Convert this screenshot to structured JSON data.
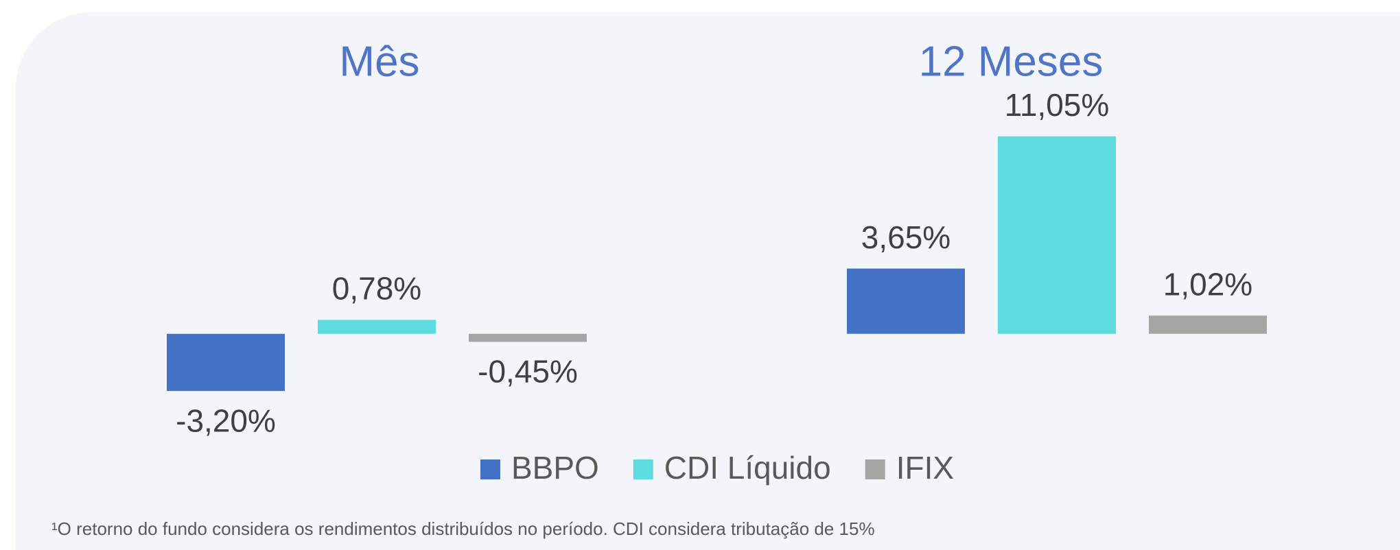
{
  "chart_data": {
    "type": "bar",
    "categories": [
      "Mês",
      "12 Meses"
    ],
    "series": [
      {
        "name": "BBPO",
        "color": "#4472c4",
        "values": [
          -3.2,
          3.65
        ],
        "value_labels": [
          "-3,20%",
          "3,65%"
        ]
      },
      {
        "name": "CDI Líquido",
        "color": "#5cdcdf",
        "values": [
          0.78,
          11.05
        ],
        "value_labels": [
          "0,78%",
          "11,05%"
        ]
      },
      {
        "name": "IFIX",
        "color": "#a5a5a5",
        "values": [
          -0.45,
          1.02
        ],
        "value_labels": [
          "-0,45%",
          "1,02%"
        ]
      }
    ],
    "ylim": [
      -4,
      12
    ],
    "legend": "bottom",
    "footnote": "¹O retorno do fundo considera os rendimentos distribuídos no período. CDI considera tributação de 15%"
  }
}
